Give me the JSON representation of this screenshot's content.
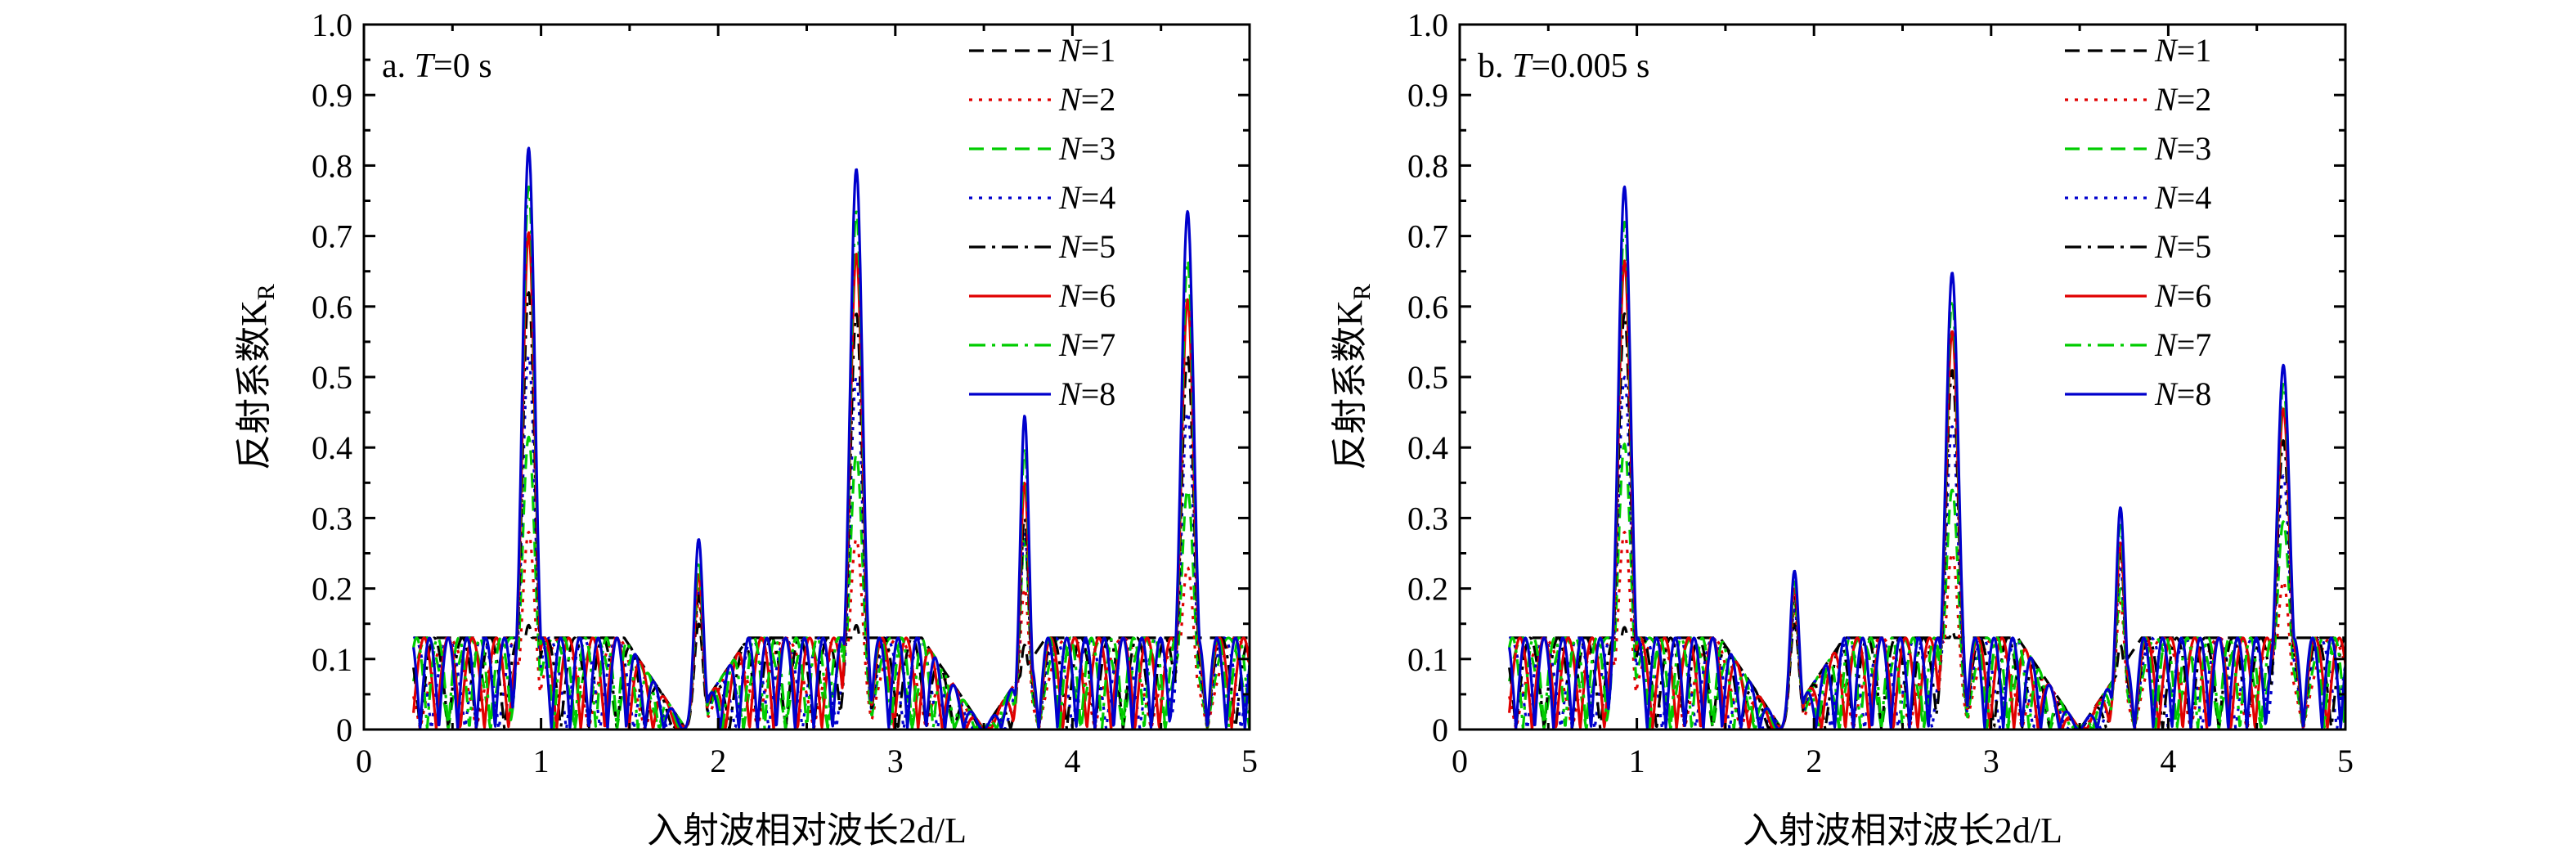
{
  "chart_data": [
    {
      "type": "line",
      "panel_label_prefix": "a. ",
      "panel_label_var": "T",
      "panel_label_value": "=0 s",
      "xlabel": "入射波相对波长2d/L",
      "ylabel": "反射系数K",
      "ylabel_sub": "R",
      "xlim": [
        0,
        5
      ],
      "ylim": [
        0,
        1.0
      ],
      "xticks": [
        "0",
        "1",
        "2",
        "3",
        "4",
        "5"
      ],
      "yticks": [
        "0",
        "0.1",
        "0.2",
        "0.3",
        "0.4",
        "0.5",
        "0.6",
        "0.7",
        "0.8",
        "0.9",
        "1.0"
      ],
      "legend_position": "top-right",
      "grid": false,
      "x_range": [
        0.28,
        5.0
      ],
      "peaks_x": [
        0.93,
        1.89,
        2.78,
        3.73,
        4.65
      ],
      "series": [
        {
          "name_var": "N",
          "name_value": "=1",
          "color": "#000000",
          "dash": "dashed",
          "peaks": [
            0.148,
            0.15,
            0.148,
            0.12,
            0.12
          ]
        },
        {
          "name_var": "N",
          "name_value": "=2",
          "color": "#e00000",
          "dash": "dotted",
          "peaks": [
            0.28,
            0.18,
            0.27,
            0.2,
            0.23
          ]
        },
        {
          "name_var": "N",
          "name_value": "=3",
          "color": "#00cc00",
          "dash": "dashed",
          "peaks": [
            0.415,
            0.2,
            0.39,
            0.27,
            0.34
          ]
        },
        {
          "name_var": "N",
          "name_value": "=4",
          "color": "#0000cc",
          "dash": "dotted",
          "peaks": [
            0.53,
            0.2,
            0.5,
            0.28,
            0.45
          ]
        },
        {
          "name_var": "N",
          "name_value": "=5",
          "color": "#000000",
          "dash": "dashdot",
          "peaks": [
            0.62,
            0.19,
            0.59,
            0.3,
            0.53
          ]
        },
        {
          "name_var": "N",
          "name_value": "=6",
          "color": "#e00000",
          "dash": "solid",
          "peaks": [
            0.705,
            0.22,
            0.675,
            0.35,
            0.61
          ]
        },
        {
          "name_var": "N",
          "name_value": "=7",
          "color": "#00cc00",
          "dash": "dashdot",
          "peaks": [
            0.77,
            0.24,
            0.735,
            0.4,
            0.665
          ]
        },
        {
          "name_var": "N",
          "name_value": "=8",
          "color": "#0000cc",
          "dash": "solid",
          "peaks": [
            0.825,
            0.27,
            0.795,
            0.445,
            0.735
          ]
        }
      ]
    },
    {
      "type": "line",
      "panel_label_prefix": "b. ",
      "panel_label_var": "T",
      "panel_label_value": "=0.005 s",
      "xlabel": "入射波相对波长2d/L",
      "ylabel": "反射系数K",
      "ylabel_sub": "R",
      "xlim": [
        0,
        5
      ],
      "ylim": [
        0,
        1.0
      ],
      "xticks": [
        "0",
        "1",
        "2",
        "3",
        "4",
        "5"
      ],
      "yticks": [
        "0",
        "0.1",
        "0.2",
        "0.3",
        "0.4",
        "0.5",
        "0.6",
        "0.7",
        "0.8",
        "0.9",
        "1.0"
      ],
      "legend_position": "top-right",
      "grid": false,
      "x_range": [
        0.28,
        5.0
      ],
      "peaks_x": [
        0.93,
        1.89,
        2.78,
        3.73,
        4.65
      ],
      "series": [
        {
          "name_var": "N",
          "name_value": "=1",
          "color": "#000000",
          "dash": "dashed",
          "peaks": [
            0.145,
            0.15,
            0.14,
            0.12,
            0.13
          ]
        },
        {
          "name_var": "N",
          "name_value": "=2",
          "color": "#e00000",
          "dash": "dotted",
          "peaks": [
            0.28,
            0.17,
            0.25,
            0.18,
            0.21
          ]
        },
        {
          "name_var": "N",
          "name_value": "=3",
          "color": "#00cc00",
          "dash": "dashed",
          "peaks": [
            0.405,
            0.18,
            0.34,
            0.2,
            0.295
          ]
        },
        {
          "name_var": "N",
          "name_value": "=4",
          "color": "#0000cc",
          "dash": "dotted",
          "peaks": [
            0.5,
            0.17,
            0.43,
            0.23,
            0.36
          ]
        },
        {
          "name_var": "N",
          "name_value": "=5",
          "color": "#000000",
          "dash": "dashdot",
          "peaks": [
            0.59,
            0.19,
            0.51,
            0.25,
            0.41
          ]
        },
        {
          "name_var": "N",
          "name_value": "=6",
          "color": "#e00000",
          "dash": "solid",
          "peaks": [
            0.665,
            0.2,
            0.565,
            0.265,
            0.455
          ]
        },
        {
          "name_var": "N",
          "name_value": "=7",
          "color": "#00cc00",
          "dash": "dashdot",
          "peaks": [
            0.72,
            0.21,
            0.61,
            0.29,
            0.49
          ]
        },
        {
          "name_var": "N",
          "name_value": "=8",
          "color": "#0000cc",
          "dash": "solid",
          "peaks": [
            0.77,
            0.225,
            0.648,
            0.315,
            0.517
          ]
        }
      ]
    }
  ]
}
